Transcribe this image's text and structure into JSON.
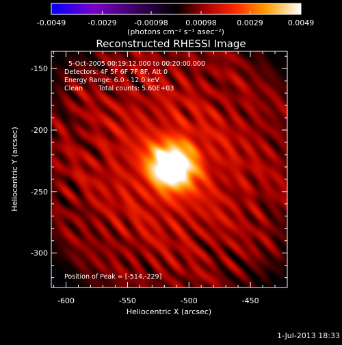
{
  "colorbar": {
    "tick_labels": [
      "-0.0049",
      "-0.0029",
      "-0.00098",
      "0.00098",
      "0.0029",
      "0.0049"
    ],
    "tick_values": [
      -0.0049,
      -0.0029,
      -0.00098,
      0.00098,
      0.0029,
      0.0049
    ],
    "range": [
      -0.0049,
      0.0049
    ],
    "units": "(photons cm⁻² s⁻¹ asec⁻²)",
    "colors": [
      "#0000ff",
      "#7a00c8",
      "#000000",
      "#aa0000",
      "#ff2a00",
      "#ff9e00",
      "#ffffff"
    ]
  },
  "chart_data": {
    "type": "heatmap",
    "title": "Reconstructed RHESSI Image",
    "xlabel": "Heliocentric X (arcsec)",
    "ylabel": "Heliocentric Y (arcsec)",
    "xlim": [
      -612,
      -420
    ],
    "ylim": [
      -328,
      -136
    ],
    "x_ticks": [
      -600,
      -550,
      -500,
      -450
    ],
    "y_ticks": [
      -150,
      -200,
      -250,
      -300
    ],
    "x_tick_labels": [
      "-600",
      "-550",
      "-500",
      "-450"
    ],
    "y_tick_labels": [
      "-150",
      "-200",
      "-250",
      "-300"
    ],
    "peak": [
      -514,
      -229
    ],
    "annotations": {
      "time": "5-Oct-2005 00:19:12.000 to 00:20:00.000",
      "detectors": "Detectors: 4F 5F 6F 7F 8F, Att 0",
      "energy": "Energy Range: 6.0 - 12.0 keV",
      "method": "Clean",
      "counts": "Total counts: 5.60E+03",
      "peak_label": "Position of Peak = [-514,-229]"
    }
  },
  "footer": {
    "timestamp": "1-Jul-2013 18:33"
  }
}
